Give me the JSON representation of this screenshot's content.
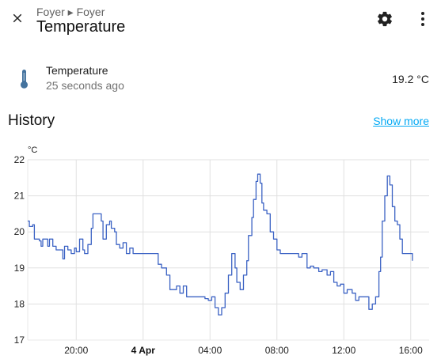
{
  "header": {
    "breadcrumb": "Foyer ▸ Foyer",
    "title": "Temperature",
    "close_icon": "close-icon",
    "settings_icon": "gear-icon",
    "menu_icon": "more-vertical-icon"
  },
  "entity": {
    "icon": "thermometer-icon",
    "name": "Temperature",
    "last_changed": "25 seconds ago",
    "state": "19.2 °C"
  },
  "history": {
    "title": "History",
    "show_more": "Show more"
  },
  "colors": {
    "line": "#3b62c4",
    "grid": "#e0e0e0",
    "accent": "#03a9f4",
    "icon": "#44739e"
  },
  "chart_data": {
    "type": "line",
    "unit": "°C",
    "ylim": [
      17,
      22
    ],
    "y_ticks": [
      17,
      18,
      19,
      20,
      21,
      22
    ],
    "x_ticks": [
      {
        "t": 20,
        "label": "20:00",
        "bold": false
      },
      {
        "t": 24,
        "label": "4 Apr",
        "bold": true
      },
      {
        "t": 28,
        "label": "04:00",
        "bold": false
      },
      {
        "t": 32,
        "label": "08:00",
        "bold": false
      },
      {
        "t": 36,
        "label": "12:00",
        "bold": false
      },
      {
        "t": 40,
        "label": "16:00",
        "bold": false
      }
    ],
    "xlim": [
      17.1,
      41.1
    ],
    "grid": true,
    "series": [
      {
        "name": "",
        "step": true,
        "points": [
          [
            17.1,
            20.3
          ],
          [
            17.2,
            20.15
          ],
          [
            17.4,
            20.2
          ],
          [
            17.5,
            19.8
          ],
          [
            17.8,
            19.75
          ],
          [
            17.9,
            19.6
          ],
          [
            18.0,
            19.8
          ],
          [
            18.3,
            19.6
          ],
          [
            18.4,
            19.8
          ],
          [
            18.6,
            19.6
          ],
          [
            18.8,
            19.5
          ],
          [
            19.0,
            19.5
          ],
          [
            19.2,
            19.25
          ],
          [
            19.3,
            19.6
          ],
          [
            19.5,
            19.5
          ],
          [
            19.7,
            19.4
          ],
          [
            19.9,
            19.55
          ],
          [
            20.0,
            19.45
          ],
          [
            20.2,
            19.8
          ],
          [
            20.4,
            19.5
          ],
          [
            20.5,
            19.4
          ],
          [
            20.7,
            19.65
          ],
          [
            20.9,
            20.1
          ],
          [
            21.0,
            20.5
          ],
          [
            21.5,
            20.3
          ],
          [
            21.6,
            19.8
          ],
          [
            21.8,
            20.2
          ],
          [
            22.0,
            20.3
          ],
          [
            22.1,
            20.1
          ],
          [
            22.3,
            20.0
          ],
          [
            22.4,
            19.65
          ],
          [
            22.6,
            19.55
          ],
          [
            22.8,
            19.7
          ],
          [
            23.0,
            19.4
          ],
          [
            23.2,
            19.55
          ],
          [
            23.4,
            19.4
          ],
          [
            24.0,
            19.4
          ],
          [
            24.8,
            19.4
          ],
          [
            24.9,
            19.1
          ],
          [
            25.1,
            19.0
          ],
          [
            25.4,
            18.8
          ],
          [
            25.6,
            18.4
          ],
          [
            26.0,
            18.5
          ],
          [
            26.2,
            18.3
          ],
          [
            26.4,
            18.5
          ],
          [
            26.6,
            18.2
          ],
          [
            27.2,
            18.2
          ],
          [
            27.4,
            18.2
          ],
          [
            27.7,
            18.15
          ],
          [
            27.9,
            18.1
          ],
          [
            28.1,
            18.2
          ],
          [
            28.3,
            17.9
          ],
          [
            28.5,
            17.7
          ],
          [
            28.7,
            17.9
          ],
          [
            28.9,
            18.3
          ],
          [
            29.1,
            18.8
          ],
          [
            29.3,
            19.4
          ],
          [
            29.5,
            19.0
          ],
          [
            29.6,
            18.6
          ],
          [
            29.8,
            18.4
          ],
          [
            30.0,
            18.8
          ],
          [
            30.2,
            19.2
          ],
          [
            30.3,
            19.9
          ],
          [
            30.5,
            20.4
          ],
          [
            30.6,
            20.9
          ],
          [
            30.75,
            21.4
          ],
          [
            30.85,
            21.6
          ],
          [
            31.0,
            21.35
          ],
          [
            31.1,
            20.8
          ],
          [
            31.2,
            20.6
          ],
          [
            31.4,
            20.5
          ],
          [
            31.6,
            20.0
          ],
          [
            31.8,
            19.8
          ],
          [
            32.0,
            19.5
          ],
          [
            32.2,
            19.4
          ],
          [
            32.6,
            19.4
          ],
          [
            32.8,
            19.4
          ],
          [
            33.0,
            19.4
          ],
          [
            33.3,
            19.3
          ],
          [
            33.5,
            19.4
          ],
          [
            33.8,
            19.0
          ],
          [
            34.0,
            19.05
          ],
          [
            34.2,
            19.0
          ],
          [
            34.5,
            18.9
          ],
          [
            34.7,
            18.95
          ],
          [
            35.0,
            18.8
          ],
          [
            35.2,
            18.9
          ],
          [
            35.4,
            18.6
          ],
          [
            35.6,
            18.5
          ],
          [
            35.8,
            18.55
          ],
          [
            36.0,
            18.3
          ],
          [
            36.2,
            18.4
          ],
          [
            36.5,
            18.3
          ],
          [
            36.7,
            18.1
          ],
          [
            36.9,
            18.2
          ],
          [
            37.0,
            18.2
          ],
          [
            37.3,
            18.2
          ],
          [
            37.5,
            17.85
          ],
          [
            37.7,
            18.0
          ],
          [
            37.9,
            18.2
          ],
          [
            38.1,
            18.9
          ],
          [
            38.2,
            19.3
          ],
          [
            38.3,
            20.3
          ],
          [
            38.45,
            21.0
          ],
          [
            38.6,
            21.55
          ],
          [
            38.75,
            21.3
          ],
          [
            38.9,
            20.7
          ],
          [
            39.05,
            20.3
          ],
          [
            39.2,
            20.2
          ],
          [
            39.35,
            19.8
          ],
          [
            39.5,
            19.4
          ],
          [
            39.8,
            19.4
          ],
          [
            40.1,
            19.2
          ]
        ]
      }
    ]
  }
}
